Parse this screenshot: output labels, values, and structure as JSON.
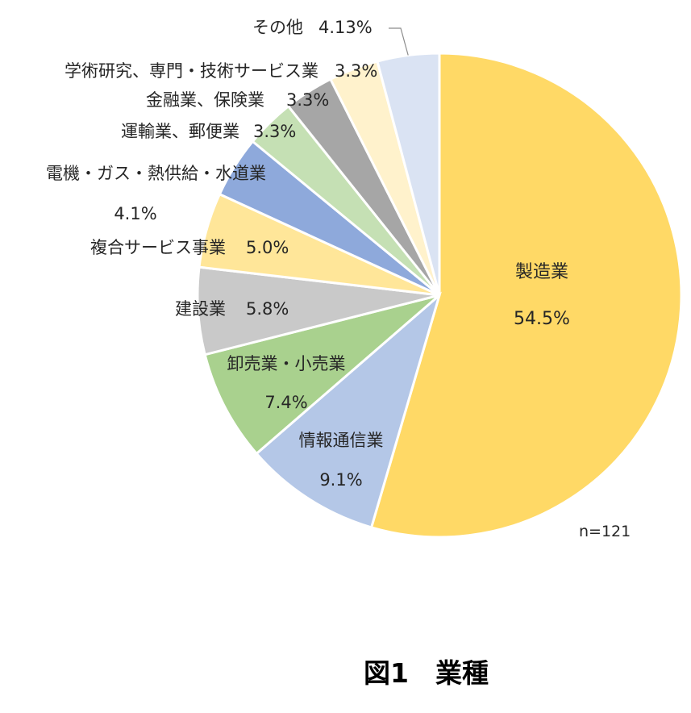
{
  "chart_data": {
    "type": "pie",
    "categories": [
      "製造業",
      "情報通信業",
      "卸売業・小売業",
      "建設業",
      "複合サービス事業",
      "電機・ガス・熱供給・水道業",
      "運輸業、郵便業",
      "金融業、保険業",
      "学術研究、専門・技術サービス業",
      "その他"
    ],
    "values": [
      54.5,
      9.1,
      7.4,
      5.8,
      5.0,
      4.1,
      3.3,
      3.3,
      3.3,
      4.13
    ],
    "value_labels": [
      "54.5%",
      "9.1%",
      "7.4%",
      "5.8%",
      "5.0%",
      "4.1%",
      "3.3%",
      "3.3%",
      "3.3%",
      "4.13%"
    ],
    "colors": [
      "#FFD966",
      "#B4C7E7",
      "#A9D18E",
      "#C9C9C9",
      "#FFE699",
      "#8EA9DB",
      "#C5E0B4",
      "#A6A6A6",
      "#FFF2CC",
      "#DAE3F3"
    ],
    "start_angle": "12 o'clock",
    "direction": "clockwise"
  },
  "note": "n=121",
  "figure_title": "図1　業種"
}
